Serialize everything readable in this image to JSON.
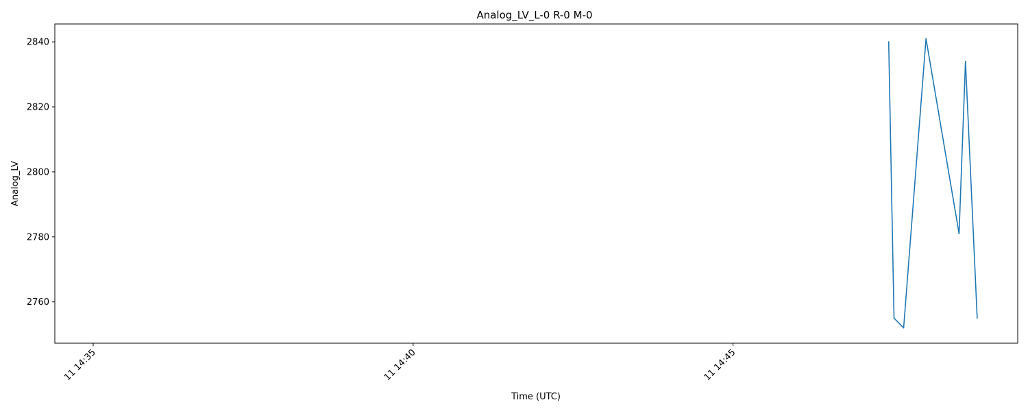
{
  "chart_data": {
    "type": "line",
    "title": "Analog_LV_L-0 R-0 M-0",
    "xlabel": "Time (UTC)",
    "ylabel": "Analog_LV",
    "x_ticks": [
      "11 14:35",
      "11 14:40",
      "11 14:45"
    ],
    "y_ticks": [
      2760,
      2780,
      2800,
      2820,
      2840
    ],
    "xlim": [
      "14:34:24",
      "14:49:27"
    ],
    "ylim": [
      2747.3,
      2845.5
    ],
    "grid": false,
    "series": [
      {
        "color": "#1f77b4",
        "x": [
          "14:47:26",
          "14:47:31",
          "14:47:40",
          "14:48:01",
          "14:48:32",
          "14:48:38",
          "14:48:49"
        ],
        "values": [
          2840,
          2755,
          2752,
          2841,
          2781,
          2834,
          2755
        ]
      }
    ]
  }
}
